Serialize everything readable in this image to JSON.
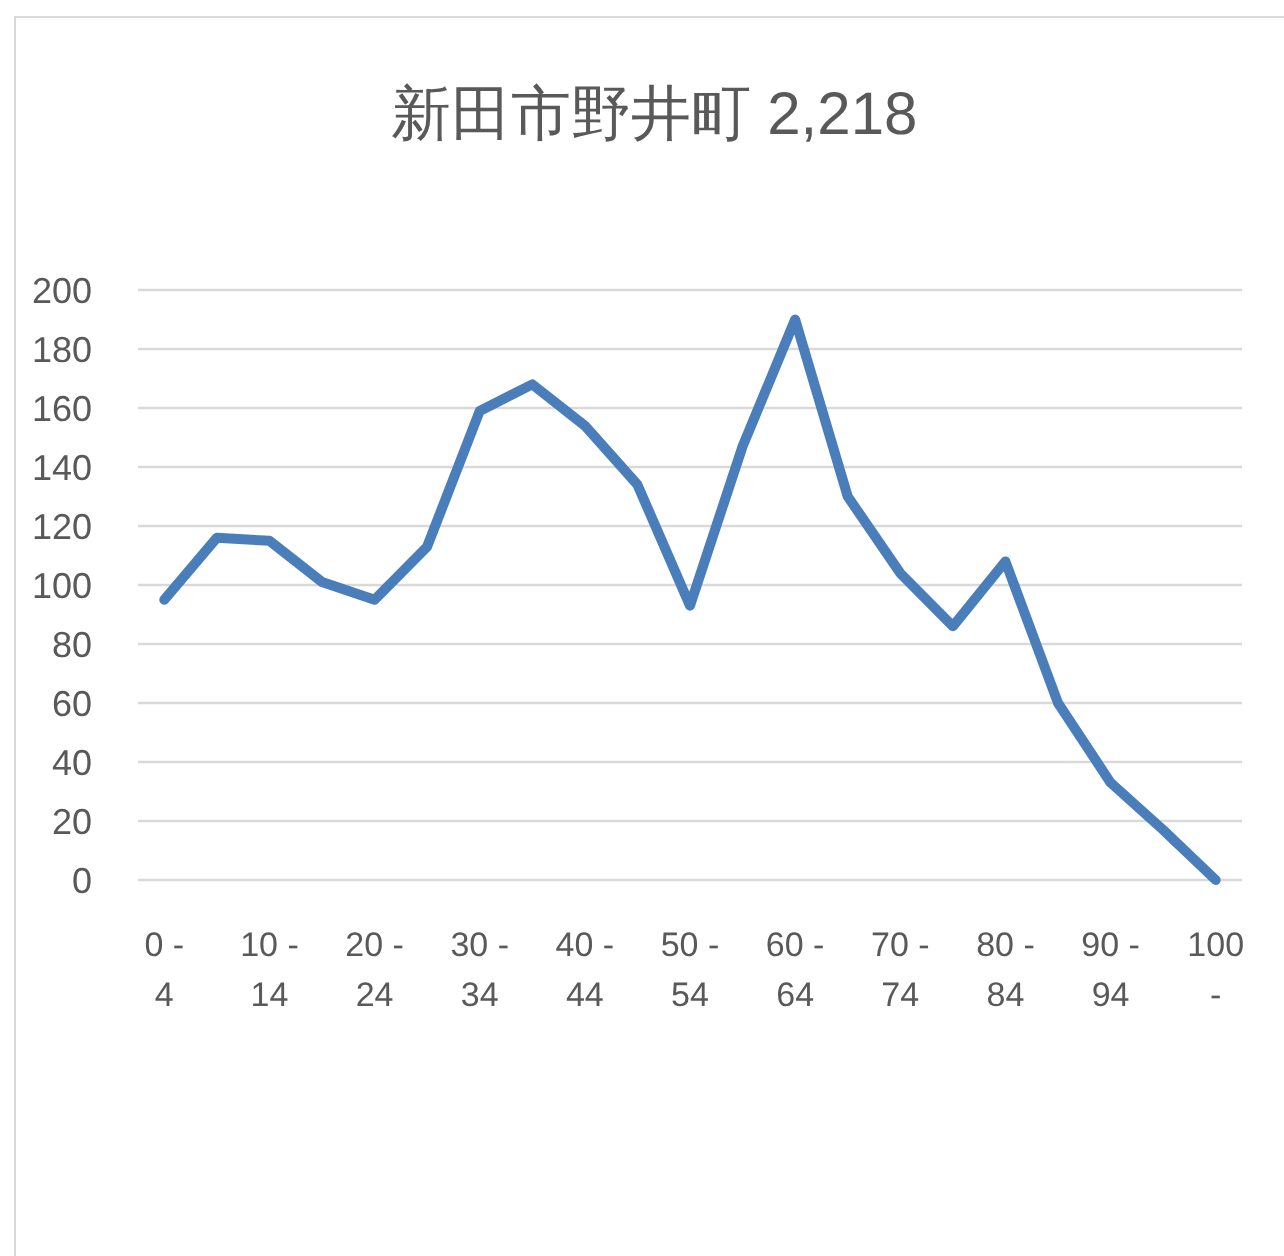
{
  "chart_data": {
    "type": "line",
    "title": "新田市野井町 2,218",
    "categories": [
      "0 - 4",
      null,
      "10 - 14",
      null,
      "20 - 24",
      null,
      "30 - 34",
      null,
      "40 - 44",
      null,
      "50 - 54",
      null,
      "60 - 64",
      null,
      "70 - 74",
      null,
      "80 - 84",
      null,
      "90 - 94",
      null,
      "100 -"
    ],
    "series": [
      {
        "color": "#4a7ebb",
        "values": [
          95,
          116,
          115,
          101,
          95,
          113,
          159,
          168,
          154,
          134,
          93,
          147,
          190,
          130,
          104,
          86,
          108,
          60,
          33,
          17,
          0
        ]
      }
    ],
    "ylim": [
      0,
      200
    ],
    "yticks": [
      0,
      20,
      40,
      60,
      80,
      100,
      120,
      140,
      160,
      180,
      200
    ],
    "grid": "y"
  }
}
